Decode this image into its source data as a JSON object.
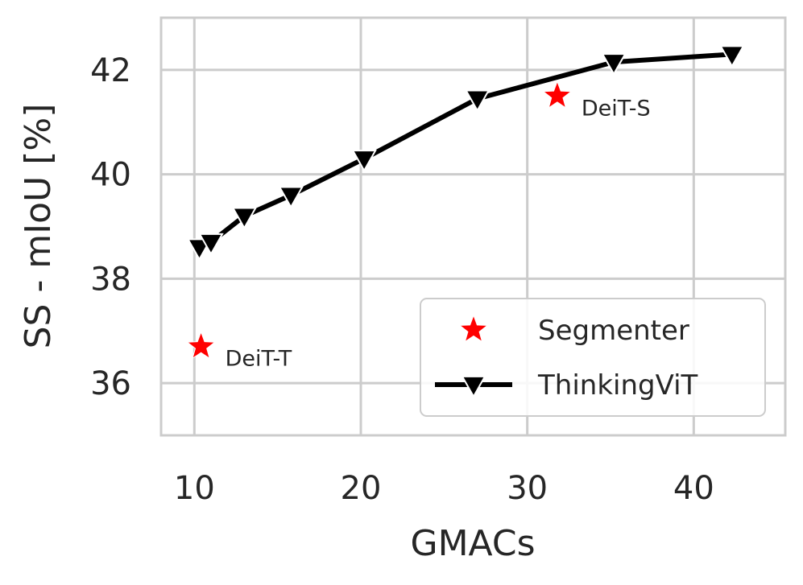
{
  "chart_data": {
    "type": "scatter",
    "xlabel": "GMACs",
    "ylabel": "SS - mIoU [%]",
    "xlim": [
      8,
      45.5
    ],
    "ylim": [
      35,
      43
    ],
    "xticks": [
      10,
      20,
      30,
      40
    ],
    "yticks": [
      36,
      38,
      40,
      42
    ],
    "grid": true,
    "legend_position": "lower-right",
    "series": [
      {
        "name": "Segmenter",
        "type": "scatter",
        "marker": "star",
        "color": "#ff0000",
        "points": [
          {
            "x": 10.4,
            "y": 36.7,
            "label": "DeiT-T"
          },
          {
            "x": 31.8,
            "y": 41.5,
            "label": "DeiT-S"
          }
        ]
      },
      {
        "name": "ThinkingViT",
        "type": "line",
        "marker": "triangle-down",
        "color": "#000000",
        "points": [
          {
            "x": 10.3,
            "y": 38.6
          },
          {
            "x": 11.0,
            "y": 38.7
          },
          {
            "x": 13.0,
            "y": 39.2
          },
          {
            "x": 15.8,
            "y": 39.6
          },
          {
            "x": 20.2,
            "y": 40.3
          },
          {
            "x": 27.0,
            "y": 41.45
          },
          {
            "x": 35.2,
            "y": 42.15
          },
          {
            "x": 42.3,
            "y": 42.3
          }
        ]
      }
    ]
  }
}
